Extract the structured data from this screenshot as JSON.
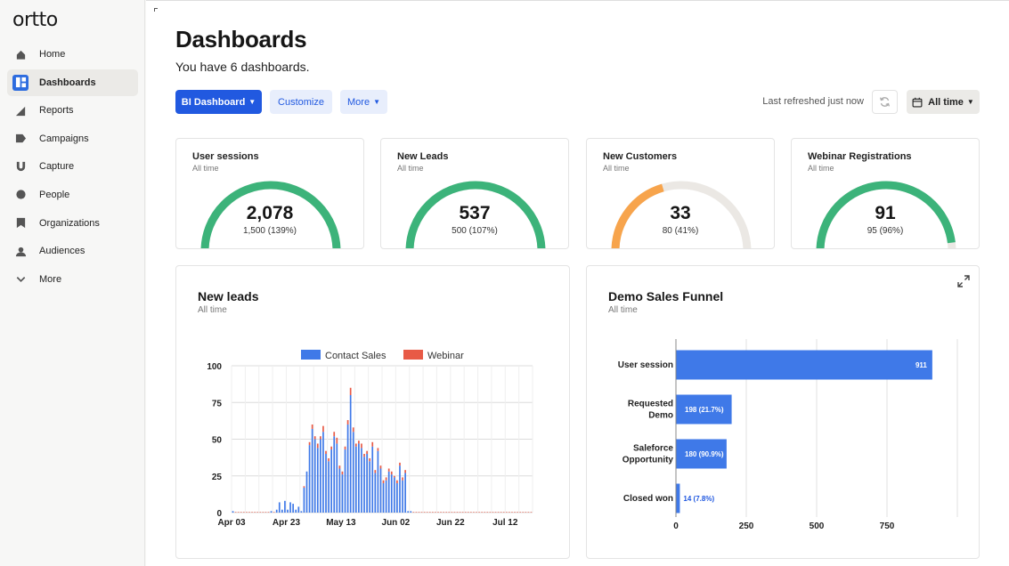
{
  "app": {
    "logo": "ortto"
  },
  "sidebar": {
    "items": [
      {
        "label": "Home",
        "icon": "home-icon"
      },
      {
        "label": "Dashboards",
        "icon": "dashboards-icon",
        "active": true
      },
      {
        "label": "Reports",
        "icon": "reports-icon"
      },
      {
        "label": "Campaigns",
        "icon": "campaigns-icon"
      },
      {
        "label": "Capture",
        "icon": "capture-icon"
      },
      {
        "label": "People",
        "icon": "people-icon"
      },
      {
        "label": "Organizations",
        "icon": "organizations-icon"
      },
      {
        "label": "Audiences",
        "icon": "audiences-icon"
      },
      {
        "label": "More",
        "icon": "chevron-down-icon"
      }
    ]
  },
  "header": {
    "title": "Dashboards",
    "subtitle": "You have 6 dashboards.",
    "dashboard_select": "BI Dashboard",
    "customize": "Customize",
    "more": "More",
    "last_refreshed": "Last refreshed just now",
    "time_range": "All time"
  },
  "colors": {
    "accent": "#2159e0",
    "green": "#3cb37a",
    "orange": "#f7a44c",
    "track": "#ebe8e4",
    "blue_series": "#3f79e8",
    "red_series": "#e85a46"
  },
  "kpis": [
    {
      "title": "User sessions",
      "period": "All time",
      "value": "2,078",
      "target": "1,500 (139%)",
      "fraction": 1.0,
      "color": "#3cb37a"
    },
    {
      "title": "New Leads",
      "period": "All time",
      "value": "537",
      "target": "500 (107%)",
      "fraction": 1.0,
      "color": "#3cb37a"
    },
    {
      "title": "New Customers",
      "period": "All time",
      "value": "33",
      "target": "80 (41%)",
      "fraction": 0.41,
      "color": "#f7a44c"
    },
    {
      "title": "Webinar Registrations",
      "period": "All time",
      "value": "91",
      "target": "95 (96%)",
      "fraction": 0.96,
      "color": "#3cb37a"
    }
  ],
  "new_leads": {
    "title": "New leads",
    "period": "All time"
  },
  "funnel": {
    "title": "Demo Sales Funnel",
    "period": "All time"
  },
  "chart_data": [
    {
      "type": "bar",
      "stacked": true,
      "title": "New leads",
      "legend": [
        "Contact Sales",
        "Webinar"
      ],
      "legend_position": "top",
      "ylim": [
        0,
        100
      ],
      "yticks": [
        0,
        25,
        50,
        75,
        100
      ],
      "xtick_labels": [
        "Apr 03",
        "Apr 23",
        "May 13",
        "Jun 02",
        "Jun 22",
        "Jul 12"
      ],
      "xtick_days": [
        0,
        20,
        40,
        60,
        80,
        100
      ],
      "days_total": 110,
      "series": [
        {
          "name": "Contact Sales",
          "values": [
            1,
            0,
            0,
            0,
            0,
            0,
            0,
            0,
            0,
            0,
            0,
            0,
            0,
            0,
            1,
            0,
            2,
            7,
            2,
            8,
            2,
            7,
            6,
            2,
            4,
            1,
            17,
            28,
            46,
            57,
            50,
            44,
            50,
            55,
            40,
            35,
            43,
            52,
            47,
            30,
            26,
            43,
            60,
            80,
            55,
            45,
            47,
            44,
            38,
            40,
            35,
            45,
            27,
            42,
            30,
            20,
            22,
            28,
            26,
            24,
            20,
            32,
            22,
            27,
            1,
            1,
            0,
            0,
            0,
            0,
            0,
            0,
            0,
            0,
            0,
            0,
            0,
            0,
            0,
            0,
            0,
            0,
            0,
            0,
            0,
            0,
            0,
            0,
            0,
            0,
            0,
            0,
            0,
            0,
            0,
            0,
            0,
            0,
            0,
            0,
            0,
            0,
            0,
            0,
            0,
            0,
            0,
            0,
            0,
            0
          ]
        },
        {
          "name": "Webinar",
          "values": [
            0,
            0,
            0,
            0,
            0,
            0,
            0,
            0,
            0,
            0,
            0,
            0,
            0,
            0,
            0,
            0,
            0,
            0,
            0,
            0,
            0,
            0,
            0,
            0,
            0,
            0,
            1,
            0,
            2,
            3,
            2,
            3,
            2,
            4,
            2,
            2,
            2,
            3,
            4,
            2,
            2,
            2,
            3,
            5,
            3,
            2,
            2,
            3,
            2,
            2,
            2,
            3,
            2,
            2,
            2,
            2,
            2,
            2,
            2,
            1,
            2,
            2,
            2,
            2,
            0,
            0,
            0,
            0,
            0,
            0,
            0,
            0,
            0,
            0,
            0,
            0,
            0,
            0,
            0,
            0,
            0,
            0,
            0,
            0,
            0,
            0,
            0,
            0,
            0,
            0,
            0,
            0,
            0,
            0,
            0,
            0,
            0,
            0,
            0,
            0,
            0,
            0,
            0,
            0,
            0,
            0,
            0,
            0,
            0,
            0
          ]
        }
      ]
    },
    {
      "type": "bar",
      "orientation": "horizontal",
      "title": "Demo Sales Funnel",
      "categories": [
        "User session",
        "Requested Demo",
        "Saleforce Opportunity",
        "Closed won"
      ],
      "category_lines": [
        [
          "User session"
        ],
        [
          "Requested",
          "Demo"
        ],
        [
          "Saleforce",
          "Opportunity"
        ],
        [
          "Closed won"
        ]
      ],
      "values": [
        911,
        198,
        180,
        14
      ],
      "data_labels": [
        "911",
        "198 (21.7%)",
        "180 (90.9%)",
        "14 (7.8%)"
      ],
      "xlim": [
        0,
        1000
      ],
      "xticks": [
        0,
        250,
        500,
        750
      ]
    }
  ]
}
